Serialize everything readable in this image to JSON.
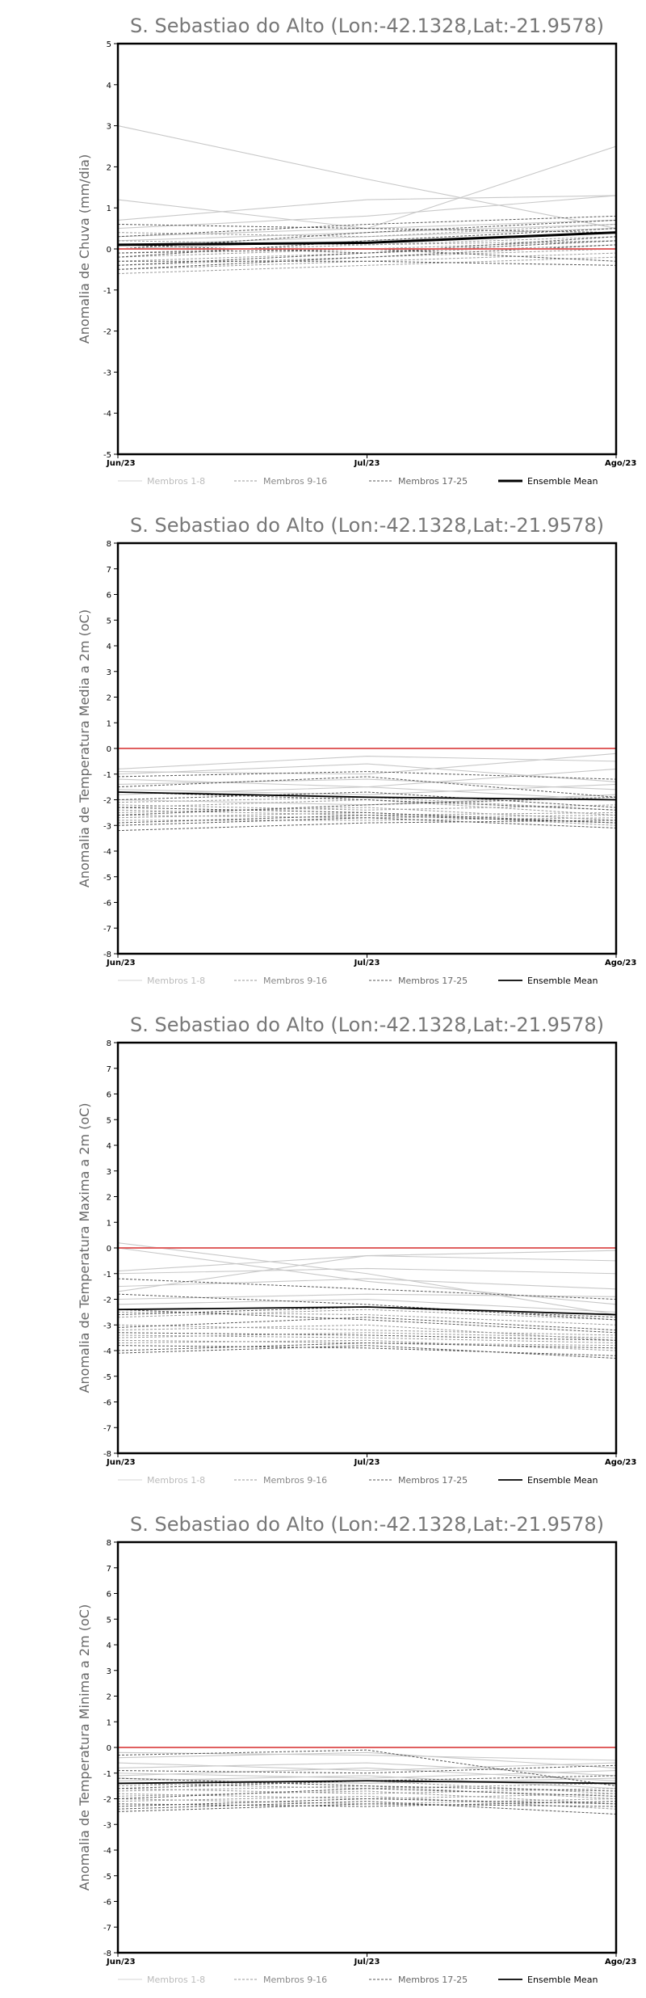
{
  "chart_data": [
    {
      "type": "line",
      "title": "S. Sebastiao do Alto (Lon:-42.1328,Lat:-21.9578)",
      "ylabel": "Anomalia de Chuva (mm/dia)",
      "xlabel": "",
      "categories": [
        "Jun/23",
        "Jul/23",
        "Ago/23"
      ],
      "ylim": [
        -5,
        5
      ],
      "yticks": [
        -5,
        -4,
        -3,
        -2,
        -1,
        0,
        1,
        2,
        3,
        4,
        5
      ],
      "zero_line_color": "#e06060",
      "legend": [
        "Membros 1-8",
        "Membros 9-16",
        "Membros 17-25",
        "Ensemble Mean"
      ],
      "legend_position": "bottom",
      "members": [
        [
          3.0,
          1.7,
          0.5
        ],
        [
          1.2,
          0.5,
          2.5
        ],
        [
          0.7,
          1.2,
          1.3
        ],
        [
          0.5,
          0.8,
          1.3
        ],
        [
          0.3,
          0.5,
          0.7
        ],
        [
          0.2,
          0.4,
          0.6
        ],
        [
          0.1,
          0.3,
          0.5
        ],
        [
          0.0,
          0.2,
          0.4
        ],
        [
          -0.1,
          0.1,
          0.3
        ],
        [
          -0.2,
          0.0,
          0.2
        ],
        [
          -0.3,
          -0.1,
          0.1
        ],
        [
          -0.4,
          -0.2,
          0.0
        ],
        [
          -0.5,
          -0.3,
          -0.1
        ],
        [
          -0.6,
          -0.4,
          -0.2
        ],
        [
          0.4,
          0.3,
          0.6
        ],
        [
          0.2,
          0.1,
          0.2
        ],
        [
          0.1,
          -0.1,
          0.3
        ],
        [
          -0.1,
          0.0,
          -0.3
        ],
        [
          -0.2,
          0.2,
          0.5
        ],
        [
          0.3,
          0.6,
          0.8
        ],
        [
          -0.3,
          -0.3,
          -0.4
        ],
        [
          0.0,
          0.4,
          0.7
        ],
        [
          -0.5,
          -0.2,
          0.1
        ],
        [
          0.6,
          0.5,
          0.4
        ],
        [
          -0.4,
          -0.1,
          0.2
        ]
      ],
      "ensemble_mean": [
        0.1,
        0.15,
        0.4
      ]
    },
    {
      "type": "line",
      "title": "S. Sebastiao do Alto (Lon:-42.1328,Lat:-21.9578)",
      "ylabel": "Anomalia de Temperatura Media a 2m (oC)",
      "xlabel": "",
      "categories": [
        "Jun/23",
        "Jul/23",
        "Ago/23"
      ],
      "ylim": [
        -8,
        8
      ],
      "yticks": [
        -8,
        -7,
        -6,
        -5,
        -4,
        -3,
        -2,
        -1,
        0,
        1,
        2,
        3,
        4,
        5,
        6,
        7,
        8
      ],
      "zero_line_color": "#e06060",
      "legend": [
        "Membros 1-8",
        "Membros 9-16",
        "Membros 17-25",
        "Ensemble Mean"
      ],
      "legend_position": "bottom",
      "members": [
        [
          -0.8,
          -0.3,
          -0.5
        ],
        [
          -0.9,
          -1.0,
          -0.2
        ],
        [
          -1.0,
          -0.6,
          -1.3
        ],
        [
          -1.2,
          -1.5,
          -0.8
        ],
        [
          -1.4,
          -1.2,
          -1.6
        ],
        [
          -1.6,
          -1.8,
          -1.4
        ],
        [
          -1.8,
          -1.5,
          -2.0
        ],
        [
          -2.0,
          -2.2,
          -1.8
        ],
        [
          -2.1,
          -1.9,
          -2.4
        ],
        [
          -2.2,
          -2.4,
          -2.2
        ],
        [
          -2.3,
          -2.0,
          -2.6
        ],
        [
          -2.4,
          -2.6,
          -2.5
        ],
        [
          -2.5,
          -2.3,
          -2.8
        ],
        [
          -2.6,
          -2.7,
          -2.6
        ],
        [
          -2.7,
          -2.5,
          -3.0
        ],
        [
          -2.8,
          -2.8,
          -2.7
        ],
        [
          -2.9,
          -2.6,
          -2.9
        ],
        [
          -3.0,
          -2.7,
          -3.1
        ],
        [
          -3.2,
          -2.9,
          -2.8
        ],
        [
          -1.5,
          -1.1,
          -1.9
        ],
        [
          -1.1,
          -0.9,
          -1.2
        ],
        [
          -2.0,
          -1.7,
          -2.3
        ],
        [
          -2.6,
          -2.2,
          -1.9
        ],
        [
          -1.7,
          -2.0,
          -2.4
        ],
        [
          -2.3,
          -2.5,
          -2.9
        ]
      ],
      "ensemble_mean": [
        -1.7,
        -1.9,
        -2.0
      ]
    },
    {
      "type": "line",
      "title": "S. Sebastiao do Alto (Lon:-42.1328,Lat:-21.9578)",
      "ylabel": "Anomalia de Temperatura Maxima a 2m (oC)",
      "xlabel": "",
      "categories": [
        "Jun/23",
        "Jul/23",
        "Ago/23"
      ],
      "ylim": [
        -8,
        8
      ],
      "yticks": [
        -8,
        -7,
        -6,
        -5,
        -4,
        -3,
        -2,
        -1,
        0,
        1,
        2,
        3,
        4,
        5,
        6,
        7,
        8
      ],
      "zero_line_color": "#e06060",
      "legend": [
        "Membros 1-8",
        "Membros 9-16",
        "Membros 17-25",
        "Ensemble Mean"
      ],
      "legend_position": "bottom",
      "members": [
        [
          0.2,
          -1.0,
          -2.6
        ],
        [
          0.0,
          -1.3,
          -2.2
        ],
        [
          -0.9,
          -0.3,
          -0.1
        ],
        [
          -1.0,
          -0.8,
          -1.0
        ],
        [
          -1.5,
          -1.2,
          -1.6
        ],
        [
          -1.7,
          -0.3,
          -0.5
        ],
        [
          -2.0,
          -1.8,
          -1.9
        ],
        [
          -2.2,
          -2.0,
          -2.5
        ],
        [
          -2.5,
          -2.6,
          -3.0
        ],
        [
          -2.7,
          -2.4,
          -2.8
        ],
        [
          -3.0,
          -3.2,
          -3.4
        ],
        [
          -3.2,
          -3.0,
          -3.6
        ],
        [
          -3.4,
          -3.5,
          -3.7
        ],
        [
          -3.5,
          -3.3,
          -3.5
        ],
        [
          -3.6,
          -3.7,
          -3.8
        ],
        [
          -3.7,
          -3.6,
          -4.0
        ],
        [
          -3.8,
          -3.9,
          -4.2
        ],
        [
          -4.0,
          -3.7,
          -3.9
        ],
        [
          -4.1,
          -3.8,
          -4.3
        ],
        [
          -1.8,
          -2.2,
          -2.8
        ],
        [
          -1.2,
          -1.6,
          -2.0
        ],
        [
          -2.4,
          -2.8,
          -3.3
        ],
        [
          -3.1,
          -2.7,
          -3.2
        ],
        [
          -2.6,
          -2.3,
          -2.7
        ],
        [
          -3.3,
          -3.4,
          -3.6
        ]
      ],
      "ensemble_mean": [
        -2.4,
        -2.3,
        -2.6
      ]
    },
    {
      "type": "line",
      "title": "S. Sebastiao do Alto (Lon:-42.1328,Lat:-21.9578)",
      "ylabel": "Anomalia de Temperatura Minima a 2m (oC)",
      "xlabel": "",
      "categories": [
        "Jun/23",
        "Jul/23",
        "Ago/23"
      ],
      "ylim": [
        -8,
        8
      ],
      "yticks": [
        -8,
        -7,
        -6,
        -5,
        -4,
        -3,
        -2,
        -1,
        0,
        1,
        2,
        3,
        4,
        5,
        6,
        7,
        8
      ],
      "zero_line_color": "#e06060",
      "legend": [
        "Membros 1-8",
        "Membros 9-16",
        "Membros 17-25",
        "Ensemble Mean"
      ],
      "legend_position": "bottom",
      "members": [
        [
          -0.2,
          -0.3,
          -0.5
        ],
        [
          -0.4,
          -0.2,
          -0.8
        ],
        [
          -0.6,
          -0.9,
          -0.6
        ],
        [
          -0.8,
          -0.6,
          -1.1
        ],
        [
          -1.0,
          -1.2,
          -0.9
        ],
        [
          -1.1,
          -0.8,
          -1.3
        ],
        [
          -1.2,
          -1.4,
          -1.2
        ],
        [
          -1.3,
          -1.1,
          -1.6
        ],
        [
          -1.4,
          -1.6,
          -1.4
        ],
        [
          -1.5,
          -1.3,
          -1.8
        ],
        [
          -1.6,
          -1.8,
          -1.6
        ],
        [
          -1.7,
          -1.5,
          -2.0
        ],
        [
          -1.8,
          -2.0,
          -1.8
        ],
        [
          -1.9,
          -1.7,
          -2.2
        ],
        [
          -2.0,
          -2.2,
          -2.0
        ],
        [
          -2.1,
          -1.9,
          -2.4
        ],
        [
          -2.2,
          -2.3,
          -2.1
        ],
        [
          -2.4,
          -2.1,
          -2.6
        ],
        [
          -2.5,
          -2.2,
          -2.3
        ],
        [
          -0.3,
          -0.1,
          -1.5
        ],
        [
          -0.9,
          -1.0,
          -0.7
        ],
        [
          -1.6,
          -1.3,
          -1.1
        ],
        [
          -2.0,
          -1.6,
          -1.9
        ],
        [
          -1.2,
          -1.5,
          -1.7
        ],
        [
          -2.3,
          -2.0,
          -2.2
        ]
      ],
      "ensemble_mean": [
        -1.4,
        -1.3,
        -1.4
      ]
    }
  ]
}
